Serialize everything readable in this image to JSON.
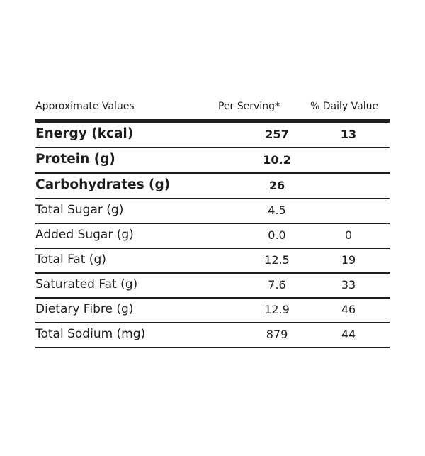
{
  "header": {
    "label": "Approximate Values",
    "per_serving": "Per Serving*",
    "daily_value": "% Daily Value"
  },
  "rows": [
    {
      "label": "Energy (kcal)",
      "per_serving": "257",
      "daily_value": "13"
    },
    {
      "label": "Protein (g)",
      "per_serving": "10.2",
      "daily_value": ""
    },
    {
      "label": "Carbohydrates (g)",
      "per_serving": "26",
      "daily_value": ""
    },
    {
      "label": "Total Sugar (g)",
      "per_serving": "4.5",
      "daily_value": ""
    },
    {
      "label": "Added Sugar (g)",
      "per_serving": "0.0",
      "daily_value": "0"
    },
    {
      "label": "Total Fat (g)",
      "per_serving": "12.5",
      "daily_value": "19"
    },
    {
      "label": "Saturated Fat (g)",
      "per_serving": "7.6",
      "daily_value": "33"
    },
    {
      "label": "Dietary Fibre (g)",
      "per_serving": "12.9",
      "daily_value": "46"
    },
    {
      "label": "Total Sodium (mg)",
      "per_serving": "879",
      "daily_value": "44"
    }
  ],
  "colors": {
    "text": "#1e1e1e",
    "rule": "#1e1e1e",
    "background": "#ffffff"
  }
}
